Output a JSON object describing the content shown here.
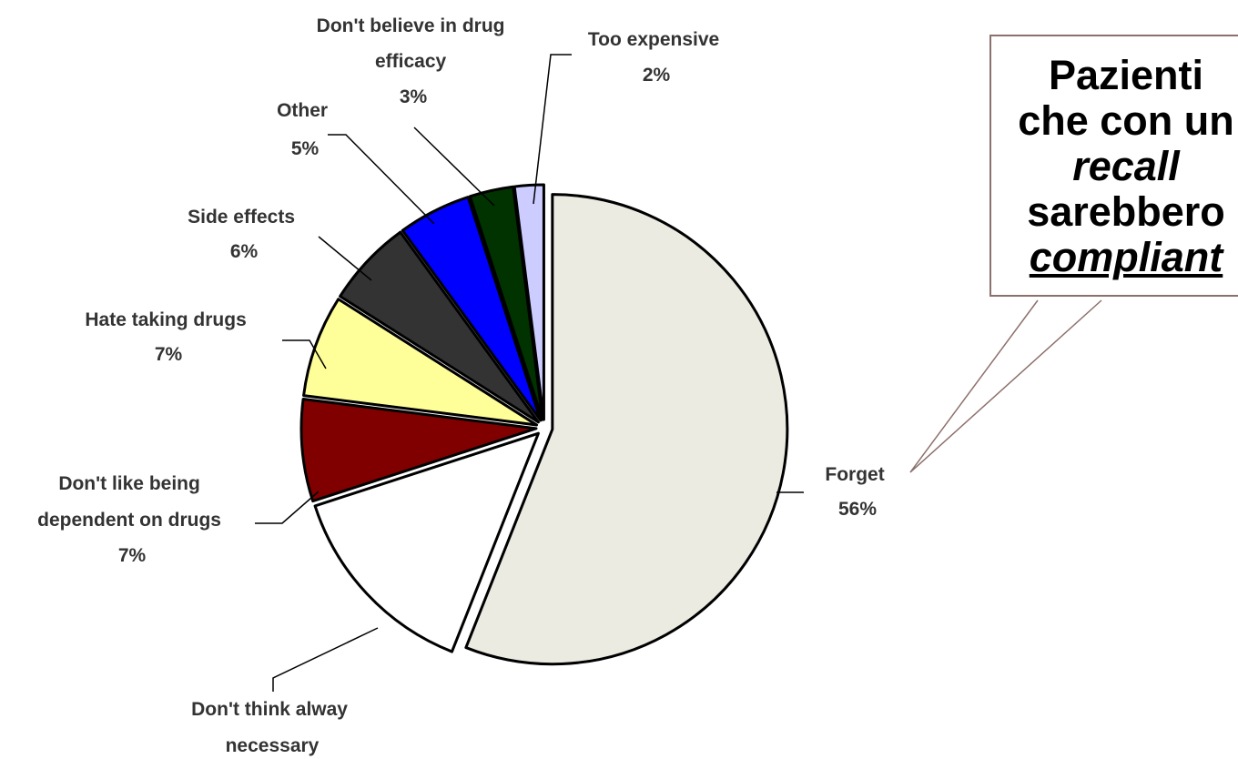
{
  "chart_data": {
    "type": "pie",
    "slices": [
      {
        "label": "Forget",
        "value": 56,
        "value_label": "56%",
        "color": "#ecebe2"
      },
      {
        "label": "Don't think alway necessary",
        "label_lines": [
          "Don't think alway",
          "necessary"
        ],
        "value": 14,
        "value_label": "",
        "color": "#ffffff"
      },
      {
        "label": "Don't like being dependent on drugs",
        "label_lines": [
          "Don't like being",
          "dependent on drugs"
        ],
        "value": 7,
        "value_label": "7%",
        "color": "#800000"
      },
      {
        "label": "Hate taking drugs",
        "value": 7,
        "value_label": "7%",
        "color": "#ffff99"
      },
      {
        "label": "Side effects",
        "value": 6,
        "value_label": "6%",
        "color": "#333333"
      },
      {
        "label": "Other",
        "value": 5,
        "value_label": "5%",
        "color": "#0000ff"
      },
      {
        "label": "Don't believe in drug efficacy",
        "label_lines": [
          "Don't believe in drug",
          "efficacy"
        ],
        "value": 3,
        "value_label": "3%",
        "color": "#003300"
      },
      {
        "label": "Too expensive",
        "value": 2,
        "value_label": "2%",
        "color": "#ccccff"
      }
    ],
    "exploded": true,
    "legend": "none"
  },
  "callout": {
    "line1": "Pazienti",
    "line2": "che con un",
    "line3": "recall",
    "line4": "sarebbero",
    "line5": "compliant",
    "border_color": "#8c706c"
  }
}
